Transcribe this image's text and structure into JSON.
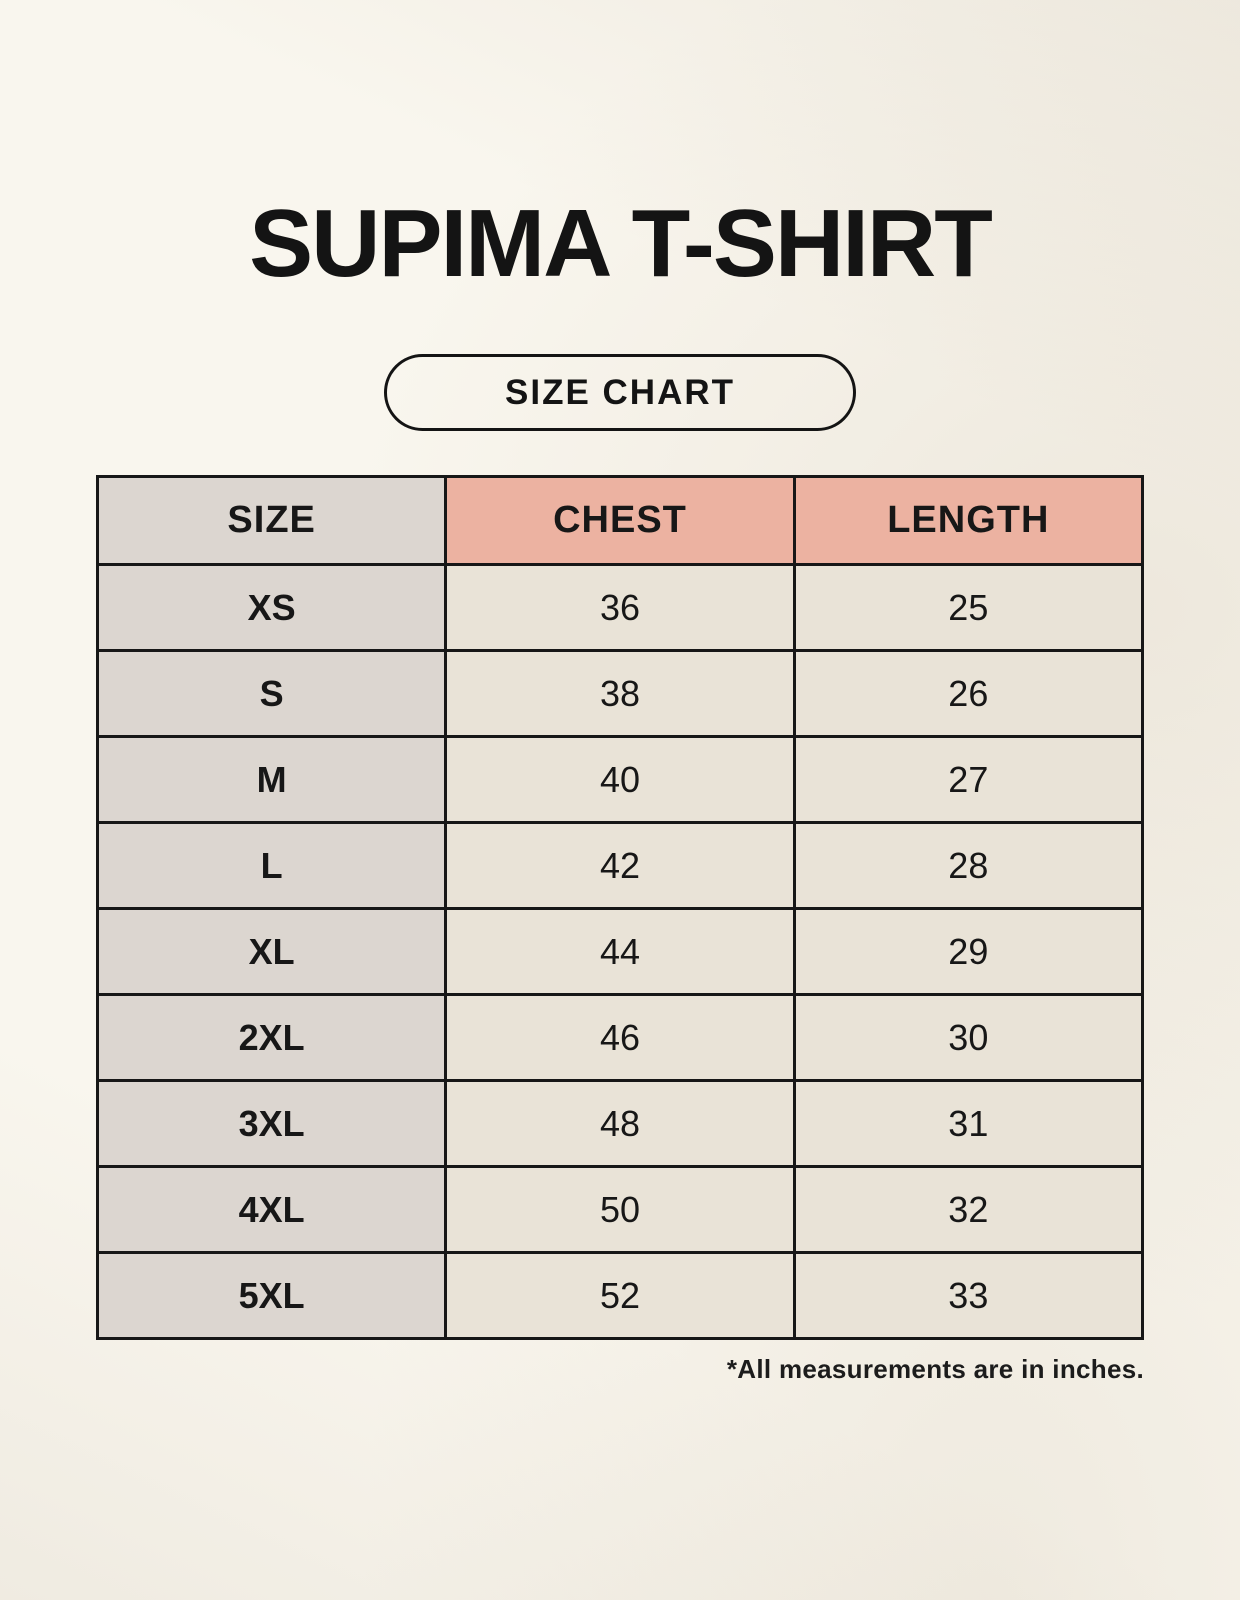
{
  "page": {
    "title": "SUPIMA T-SHIRT",
    "button_label": "SIZE CHART",
    "footnote": "*All measurements are in inches."
  },
  "colors": {
    "background": "#f9f6ee",
    "header_accent": "#ecb2a1",
    "size_column": "#dcd6d0",
    "data_cell": "#e9e3d7",
    "border": "#171717",
    "text": "#171717"
  },
  "chart_data": {
    "type": "table",
    "title": "SUPIMA T-SHIRT",
    "columns": [
      "SIZE",
      "CHEST",
      "LENGTH"
    ],
    "rows": [
      {
        "size": "XS",
        "chest": "36",
        "length": "25"
      },
      {
        "size": "S",
        "chest": "38",
        "length": "26"
      },
      {
        "size": "M",
        "chest": "40",
        "length": "27"
      },
      {
        "size": "L",
        "chest": "42",
        "length": "28"
      },
      {
        "size": "XL",
        "chest": "44",
        "length": "29"
      },
      {
        "size": "2XL",
        "chest": "46",
        "length": "30"
      },
      {
        "size": "3XL",
        "chest": "48",
        "length": "31"
      },
      {
        "size": "4XL",
        "chest": "50",
        "length": "32"
      },
      {
        "size": "5XL",
        "chest": "52",
        "length": "33"
      }
    ],
    "units_note": "*All measurements are in inches.",
    "layout": {
      "header_fill_size_col": "#dcd6d0",
      "header_fill_measure_cols": "#ecb2a1",
      "body_fill_size_col": "#dcd6d0",
      "body_fill_measure_cols": "#e9e3d7",
      "grid": "on"
    }
  }
}
